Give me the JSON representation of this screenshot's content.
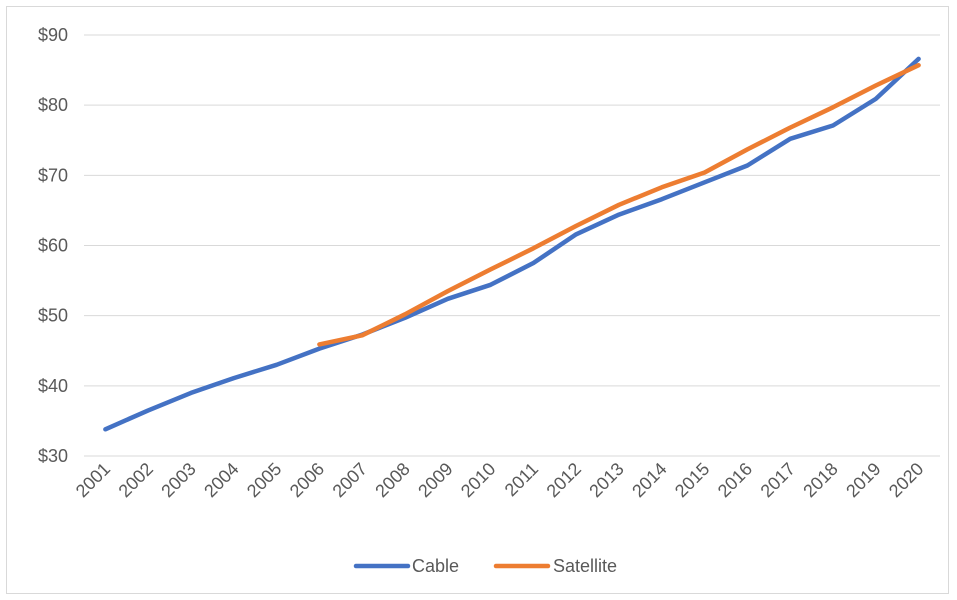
{
  "chart_data": {
    "type": "line",
    "title": "",
    "xlabel": "",
    "ylabel": "",
    "categories": [
      "2001",
      "2002",
      "2003",
      "2004",
      "2005",
      "2006",
      "2007",
      "2008",
      "2009",
      "2010",
      "2011",
      "2012",
      "2013",
      "2014",
      "2015",
      "2016",
      "2017",
      "2018",
      "2019",
      "2020"
    ],
    "ylim": [
      30,
      90
    ],
    "yticks": [
      30,
      40,
      50,
      60,
      70,
      80,
      90
    ],
    "ytick_labels": [
      "$30",
      "$40",
      "$50",
      "$60",
      "$70",
      "$80",
      "$90"
    ],
    "grid": true,
    "legend_position": "bottom",
    "series": [
      {
        "name": "Cable",
        "color": "#4472C4",
        "values": [
          33.8,
          36.5,
          39.0,
          41.1,
          43.0,
          45.3,
          47.3,
          49.7,
          52.4,
          54.4,
          57.5,
          61.6,
          64.4,
          66.6,
          69.0,
          71.4,
          75.2,
          77.1,
          80.9,
          86.6
        ]
      },
      {
        "name": "Satellite",
        "color": "#ED7D31",
        "values": [
          null,
          null,
          null,
          null,
          null,
          45.9,
          47.2,
          50.2,
          53.5,
          56.6,
          59.6,
          62.8,
          65.8,
          68.3,
          70.4,
          73.7,
          76.8,
          79.7,
          82.8,
          85.7
        ]
      }
    ]
  }
}
